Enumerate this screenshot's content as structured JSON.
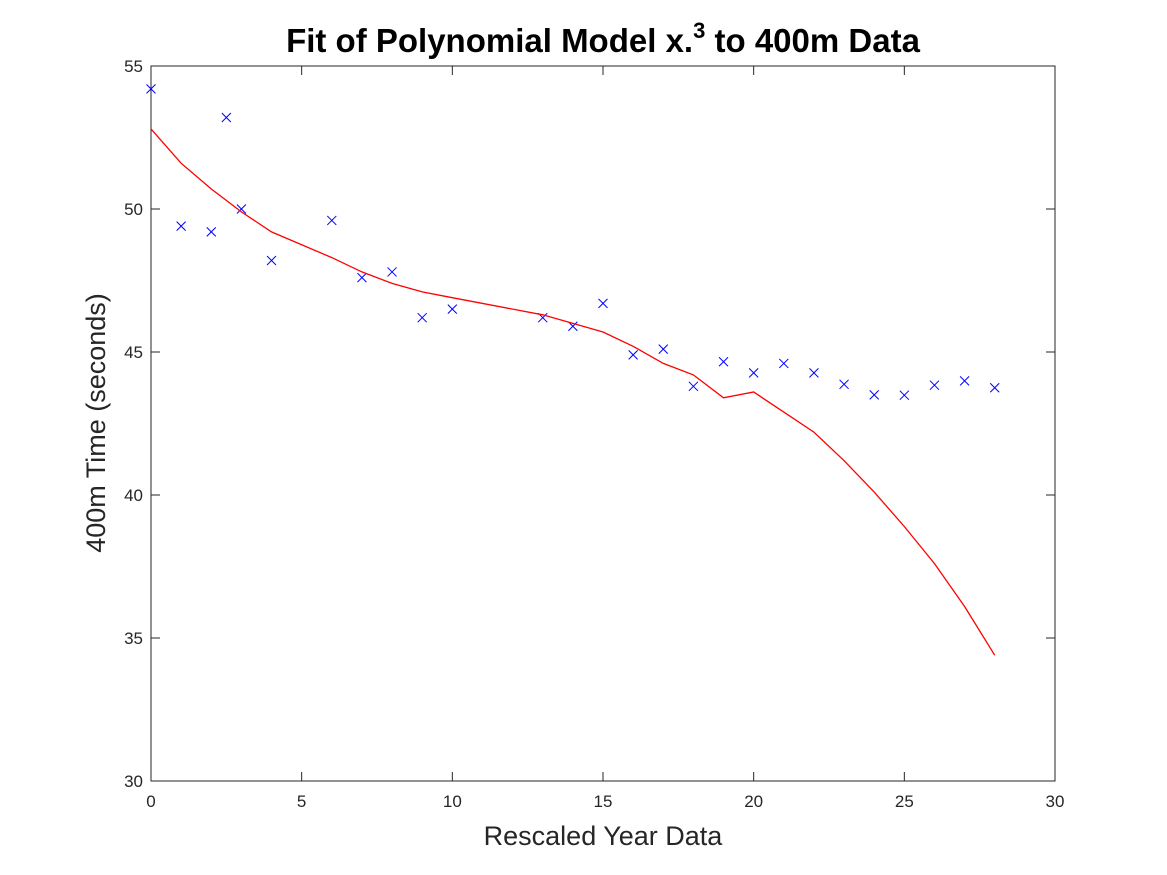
{
  "chart_data": {
    "type": "scatter",
    "title": {
      "main": "Fit of Polynomial Model x.",
      "superscript": "3",
      "suffix": " to 400m Data"
    },
    "xlabel": "Rescaled Year Data",
    "ylabel": "400m Time (seconds)",
    "xlim": [
      0,
      30
    ],
    "ylim": [
      30,
      55
    ],
    "xticks": [
      0,
      5,
      10,
      15,
      20,
      25,
      30
    ],
    "yticks": [
      30,
      35,
      40,
      45,
      50,
      55
    ],
    "grid": false,
    "legend": "none",
    "series": [
      {
        "type": "scatter",
        "marker": "x",
        "color": "#0000ff",
        "x": [
          0,
          1,
          2,
          2.5,
          3,
          4,
          6,
          7,
          8,
          9,
          10,
          13,
          14,
          15,
          16,
          17,
          18,
          19,
          20,
          21,
          22,
          23,
          24,
          25,
          26,
          27,
          28
        ],
        "y": [
          54.2,
          49.4,
          49.2,
          53.2,
          50.0,
          48.2,
          49.6,
          47.6,
          47.8,
          46.2,
          46.5,
          46.2,
          45.9,
          46.7,
          44.9,
          45.1,
          43.8,
          44.66,
          44.27,
          44.6,
          44.27,
          43.87,
          43.5,
          43.49,
          43.84,
          43.99,
          43.75
        ]
      },
      {
        "type": "line",
        "color": "#ff0000",
        "x": [
          0,
          1,
          2,
          2.5,
          3,
          4,
          6,
          7,
          8,
          9,
          10,
          13,
          14,
          15,
          16,
          17,
          18,
          19,
          20,
          21,
          22,
          23,
          24,
          25,
          26,
          27,
          28
        ],
        "y": [
          52.8,
          51.6,
          50.7,
          50.3,
          49.9,
          49.2,
          48.3,
          47.8,
          47.4,
          47.1,
          46.9,
          46.3,
          46.0,
          45.7,
          45.2,
          44.6,
          44.2,
          43.4,
          43.6,
          42.9,
          42.2,
          41.2,
          40.1,
          38.9,
          37.6,
          36.1,
          34.4
        ]
      }
    ]
  }
}
